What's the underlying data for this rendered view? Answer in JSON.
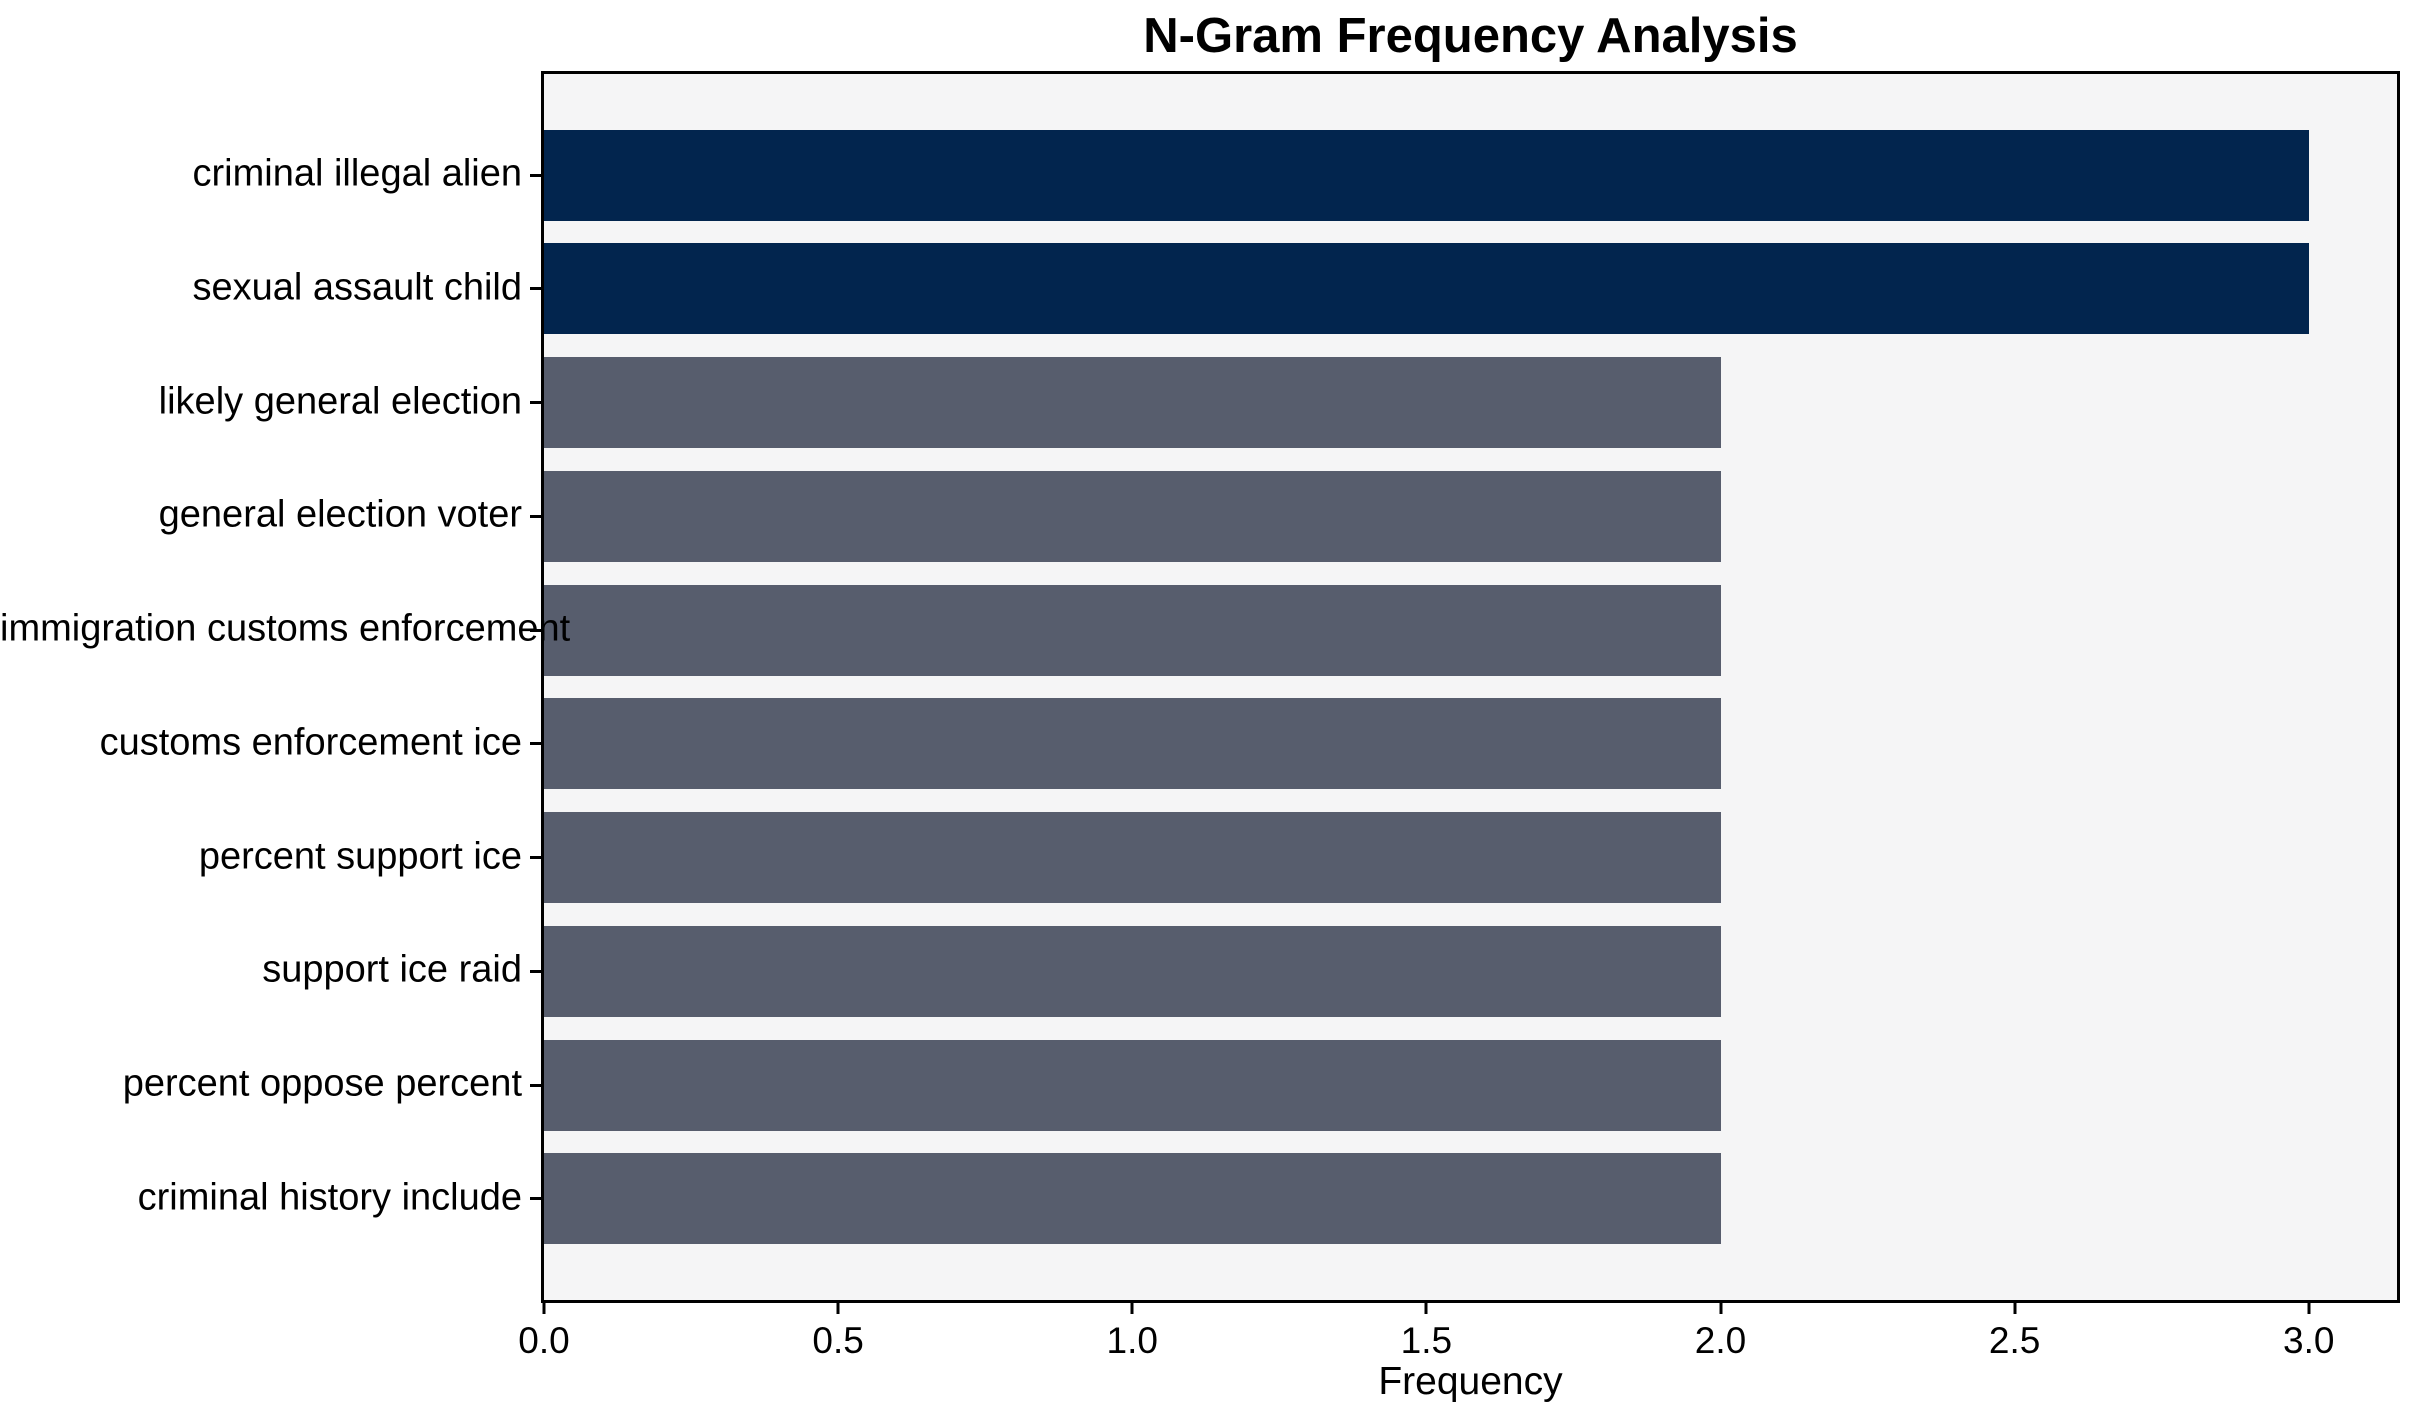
{
  "chart_data": {
    "type": "bar",
    "orientation": "horizontal",
    "title": "N-Gram Frequency Analysis",
    "xlabel": "Frequency",
    "ylabel": "",
    "categories": [
      "criminal illegal alien",
      "sexual assault child",
      "likely general election",
      "general election voter",
      "immigration customs enforcement",
      "customs enforcement ice",
      "percent support ice",
      "support ice raid",
      "percent oppose percent",
      "criminal history include"
    ],
    "values": [
      3,
      3,
      2,
      2,
      2,
      2,
      2,
      2,
      2,
      2
    ],
    "bar_colors": [
      "#02254E",
      "#02254E",
      "#575D6D",
      "#575D6D",
      "#575D6D",
      "#575D6D",
      "#575D6D",
      "#575D6D",
      "#575D6D",
      "#575D6D"
    ],
    "xlim": [
      0,
      3.15
    ],
    "xticks": [
      0.0,
      0.5,
      1.0,
      1.5,
      2.0,
      2.5,
      3.0
    ],
    "xtick_labels": [
      "0.0",
      "0.5",
      "1.0",
      "1.5",
      "2.0",
      "2.5",
      "3.0"
    ],
    "bar_height_ratio": 0.8,
    "edge_margin_units": 0.49,
    "grid": false,
    "legend": null,
    "colors": {
      "highlight_navy": "#02254E",
      "default_gray": "#575D6D",
      "plot_background": "#F5F5F6",
      "figure_background": "#FFFFFF",
      "spine": "#000000",
      "text": "#000000"
    }
  }
}
